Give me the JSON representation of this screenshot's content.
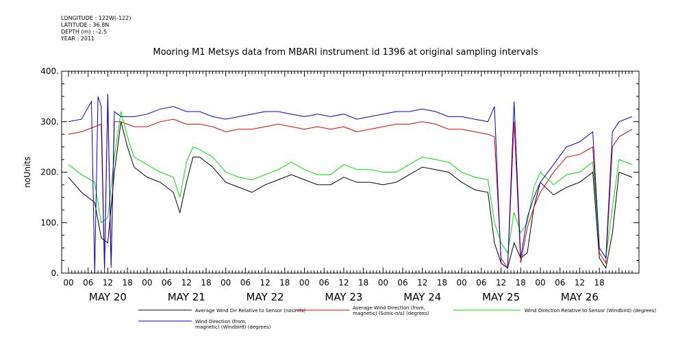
{
  "meta": {
    "longitude": "LONGITUDE : 122W(-122)",
    "latitude": "LATITUDE : 36.8N",
    "depth": "DEPTH (m) : -2.5",
    "year": "YEAR : 2011"
  },
  "colors": {
    "black": "#000000",
    "red": "#e00000",
    "green": "#00e000",
    "blue": "#0000cc"
  },
  "chart_data": {
    "type": "line",
    "title": "Mooring M1 Metsys data from MBARI instrument id 1396 at original sampling intervals",
    "ylabel": "noUnits",
    "xlabel": "",
    "ylim": [
      0,
      400
    ],
    "y_ticks": [
      "0.",
      "100.",
      "200.",
      "300.",
      "400."
    ],
    "xlim_hours": [
      0,
      172
    ],
    "x_hour_ticks": [
      "00",
      "06",
      "12",
      "18",
      "00",
      "06",
      "12",
      "18",
      "00",
      "06",
      "12",
      "18",
      "00",
      "06",
      "12",
      "18",
      "00",
      "06",
      "12",
      "18",
      "00",
      "06",
      "12",
      "18",
      "00",
      "06",
      "12",
      "18"
    ],
    "days": [
      "MAY 20",
      "MAY 21",
      "MAY 22",
      "MAY 23",
      "MAY 24",
      "MAY 25",
      "MAY 26"
    ],
    "x_unit": "hours since MAY 20 00:00 (2011)",
    "series": [
      {
        "name": "Average Wind Dir Relative to Sensor (noUnits)",
        "legend": [
          "Average Wind Dir Relative to Sensor (noUnits)"
        ],
        "color": "#000000",
        "points": [
          [
            0,
            190
          ],
          [
            4,
            160
          ],
          [
            8,
            140
          ],
          [
            10,
            70
          ],
          [
            12,
            60
          ],
          [
            14,
            200
          ],
          [
            16,
            300
          ],
          [
            18,
            250
          ],
          [
            20,
            210
          ],
          [
            24,
            190
          ],
          [
            28,
            180
          ],
          [
            32,
            160
          ],
          [
            34,
            120
          ],
          [
            36,
            180
          ],
          [
            38,
            230
          ],
          [
            40,
            230
          ],
          [
            44,
            210
          ],
          [
            48,
            180
          ],
          [
            52,
            170
          ],
          [
            56,
            160
          ],
          [
            60,
            175
          ],
          [
            64,
            185
          ],
          [
            68,
            195
          ],
          [
            72,
            185
          ],
          [
            76,
            175
          ],
          [
            80,
            175
          ],
          [
            84,
            190
          ],
          [
            88,
            180
          ],
          [
            92,
            180
          ],
          [
            96,
            175
          ],
          [
            100,
            180
          ],
          [
            104,
            195
          ],
          [
            108,
            210
          ],
          [
            112,
            205
          ],
          [
            116,
            200
          ],
          [
            120,
            180
          ],
          [
            124,
            165
          ],
          [
            128,
            160
          ],
          [
            130,
            60
          ],
          [
            132,
            20
          ],
          [
            134,
            10
          ],
          [
            136,
            60
          ],
          [
            138,
            30
          ],
          [
            140,
            40
          ],
          [
            142,
            130
          ],
          [
            144,
            180
          ],
          [
            148,
            155
          ],
          [
            152,
            170
          ],
          [
            156,
            180
          ],
          [
            160,
            200
          ],
          [
            162,
            30
          ],
          [
            164,
            10
          ],
          [
            166,
            80
          ],
          [
            168,
            200
          ],
          [
            172,
            190
          ]
        ]
      },
      {
        "name": "Average Wind Direction (from, magnetic) (Sonic-n/a) (degrees)",
        "legend": [
          "Average Wind Direction (from,",
          "magnetic) (Sonic-n/a) (degrees)"
        ],
        "color": "#e00000",
        "points": [
          [
            0,
            275
          ],
          [
            4,
            280
          ],
          [
            8,
            290
          ],
          [
            10,
            295
          ],
          [
            11,
            5
          ],
          [
            12,
            350
          ],
          [
            13,
            10
          ],
          [
            14,
            300
          ],
          [
            16,
            300
          ],
          [
            20,
            290
          ],
          [
            24,
            290
          ],
          [
            28,
            300
          ],
          [
            32,
            305
          ],
          [
            36,
            295
          ],
          [
            40,
            295
          ],
          [
            44,
            290
          ],
          [
            48,
            280
          ],
          [
            52,
            285
          ],
          [
            56,
            285
          ],
          [
            60,
            290
          ],
          [
            64,
            295
          ],
          [
            68,
            290
          ],
          [
            72,
            285
          ],
          [
            76,
            290
          ],
          [
            80,
            285
          ],
          [
            84,
            290
          ],
          [
            88,
            280
          ],
          [
            92,
            285
          ],
          [
            96,
            290
          ],
          [
            100,
            295
          ],
          [
            104,
            295
          ],
          [
            108,
            300
          ],
          [
            112,
            295
          ],
          [
            116,
            285
          ],
          [
            120,
            285
          ],
          [
            124,
            280
          ],
          [
            128,
            275
          ],
          [
            130,
            270
          ],
          [
            132,
            30
          ],
          [
            134,
            10
          ],
          [
            136,
            300
          ],
          [
            138,
            20
          ],
          [
            140,
            90
          ],
          [
            142,
            130
          ],
          [
            144,
            160
          ],
          [
            148,
            200
          ],
          [
            152,
            230
          ],
          [
            156,
            235
          ],
          [
            160,
            250
          ],
          [
            162,
            40
          ],
          [
            164,
            20
          ],
          [
            166,
            250
          ],
          [
            168,
            270
          ],
          [
            172,
            285
          ]
        ]
      },
      {
        "name": "Wind Direction Relative to Sensor (Windbird) (degrees)",
        "legend": [
          "Wind Direction Relative to Sensor (Windbird) (degrees)"
        ],
        "color": "#00e000",
        "points": [
          [
            0,
            215
          ],
          [
            4,
            195
          ],
          [
            8,
            180
          ],
          [
            10,
            100
          ],
          [
            12,
            110
          ],
          [
            14,
            230
          ],
          [
            16,
            320
          ],
          [
            18,
            270
          ],
          [
            20,
            230
          ],
          [
            24,
            215
          ],
          [
            28,
            200
          ],
          [
            32,
            190
          ],
          [
            34,
            150
          ],
          [
            36,
            220
          ],
          [
            38,
            250
          ],
          [
            40,
            245
          ],
          [
            44,
            230
          ],
          [
            48,
            200
          ],
          [
            52,
            190
          ],
          [
            56,
            185
          ],
          [
            60,
            195
          ],
          [
            64,
            205
          ],
          [
            68,
            220
          ],
          [
            72,
            205
          ],
          [
            76,
            195
          ],
          [
            80,
            195
          ],
          [
            84,
            215
          ],
          [
            88,
            205
          ],
          [
            92,
            205
          ],
          [
            96,
            200
          ],
          [
            100,
            200
          ],
          [
            104,
            215
          ],
          [
            108,
            230
          ],
          [
            112,
            225
          ],
          [
            116,
            220
          ],
          [
            120,
            200
          ],
          [
            124,
            190
          ],
          [
            128,
            185
          ],
          [
            130,
            100
          ],
          [
            132,
            60
          ],
          [
            134,
            40
          ],
          [
            136,
            120
          ],
          [
            138,
            80
          ],
          [
            140,
            100
          ],
          [
            142,
            170
          ],
          [
            144,
            200
          ],
          [
            148,
            175
          ],
          [
            152,
            195
          ],
          [
            156,
            200
          ],
          [
            160,
            220
          ],
          [
            162,
            50
          ],
          [
            164,
            30
          ],
          [
            166,
            130
          ],
          [
            168,
            225
          ],
          [
            172,
            215
          ]
        ]
      },
      {
        "name": "Wind Direction (from, magnetic) (Windbird) (degrees)",
        "legend": [
          "Wind Direction (from,",
          "magnetic) (Windbird) (degrees)"
        ],
        "color": "#0000cc",
        "points": [
          [
            0,
            300
          ],
          [
            4,
            305
          ],
          [
            7,
            340
          ],
          [
            8,
            0
          ],
          [
            9,
            350
          ],
          [
            10,
            330
          ],
          [
            11,
            10
          ],
          [
            12,
            355
          ],
          [
            13,
            15
          ],
          [
            14,
            320
          ],
          [
            16,
            310
          ],
          [
            20,
            310
          ],
          [
            24,
            315
          ],
          [
            28,
            325
          ],
          [
            32,
            330
          ],
          [
            36,
            320
          ],
          [
            40,
            320
          ],
          [
            44,
            310
          ],
          [
            48,
            305
          ],
          [
            52,
            310
          ],
          [
            56,
            315
          ],
          [
            60,
            320
          ],
          [
            64,
            320
          ],
          [
            68,
            315
          ],
          [
            72,
            310
          ],
          [
            76,
            315
          ],
          [
            80,
            310
          ],
          [
            84,
            315
          ],
          [
            88,
            305
          ],
          [
            92,
            310
          ],
          [
            96,
            315
          ],
          [
            100,
            320
          ],
          [
            104,
            320
          ],
          [
            108,
            325
          ],
          [
            112,
            320
          ],
          [
            116,
            310
          ],
          [
            120,
            310
          ],
          [
            124,
            305
          ],
          [
            128,
            300
          ],
          [
            130,
            330
          ],
          [
            132,
            20
          ],
          [
            134,
            10
          ],
          [
            136,
            340
          ],
          [
            138,
            30
          ],
          [
            140,
            110
          ],
          [
            142,
            150
          ],
          [
            144,
            180
          ],
          [
            148,
            215
          ],
          [
            152,
            250
          ],
          [
            156,
            260
          ],
          [
            160,
            280
          ],
          [
            162,
            50
          ],
          [
            164,
            30
          ],
          [
            166,
            280
          ],
          [
            168,
            300
          ],
          [
            172,
            310
          ]
        ]
      }
    ]
  }
}
